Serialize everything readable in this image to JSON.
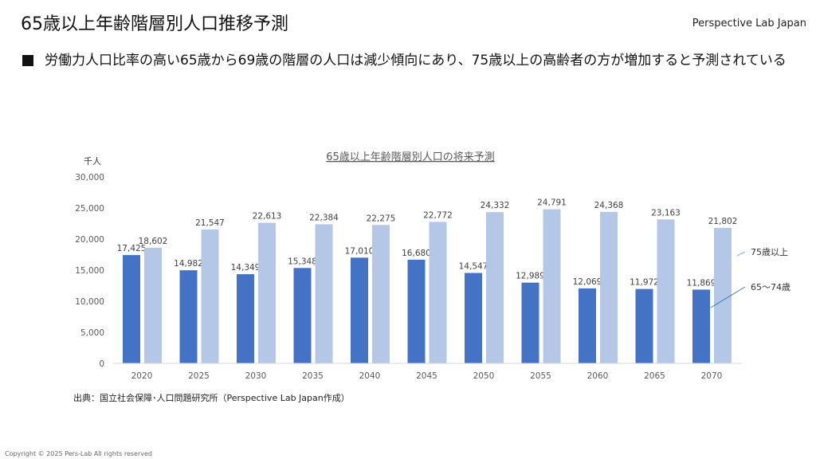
{
  "header": {
    "title": "65歳以上年齢階層別人口推移予測",
    "brand": "Perspective Lab Japan"
  },
  "bullet": "労働力人口比率の高い65歳から69歳の階層の人口は減少傾向にあり、75歳以上の高齢者の方が増加すると予測されている",
  "source": "出典：国立社会保障･人口問題研究所（Perspective Lab Japan作成）",
  "copyright": "Copyright © 2025 Pers-Lab All rights reserved",
  "chart_data": {
    "type": "bar",
    "title": "65歳以上年齢階層別人口の将来予測",
    "ylabel": "千人",
    "xlabel": "",
    "ylim": [
      0,
      30000
    ],
    "yticks": [
      0,
      5000,
      10000,
      15000,
      20000,
      25000,
      30000
    ],
    "ytick_labels": [
      "0",
      "5,000",
      "10,000",
      "15,000",
      "20,000",
      "25,000",
      "30,000"
    ],
    "categories": [
      "2020",
      "2025",
      "2030",
      "2035",
      "2040",
      "2045",
      "2050",
      "2055",
      "2060",
      "2065",
      "2070"
    ],
    "legend_placement": "right",
    "series": [
      {
        "name": "65〜74歳",
        "color": "#4472c4",
        "values": [
          17425,
          14982,
          14349,
          15348,
          17010,
          16680,
          14547,
          12989,
          12069,
          11972,
          11869
        ],
        "labels": [
          "17,425",
          "14,982",
          "14,349",
          "15,348",
          "17,010",
          "16,680",
          "14,547",
          "12,989",
          "12,069",
          "11,972",
          "11,869"
        ]
      },
      {
        "name": "75歳以上",
        "color": "#b4c7e7",
        "values": [
          18602,
          21547,
          22613,
          22384,
          22275,
          22772,
          24332,
          24791,
          24368,
          23163,
          21802
        ],
        "labels": [
          "18,602",
          "21,547",
          "22,613",
          "22,384",
          "22,275",
          "22,772",
          "24,332",
          "24,791",
          "24,368",
          "23,163",
          "21,802"
        ]
      }
    ]
  }
}
